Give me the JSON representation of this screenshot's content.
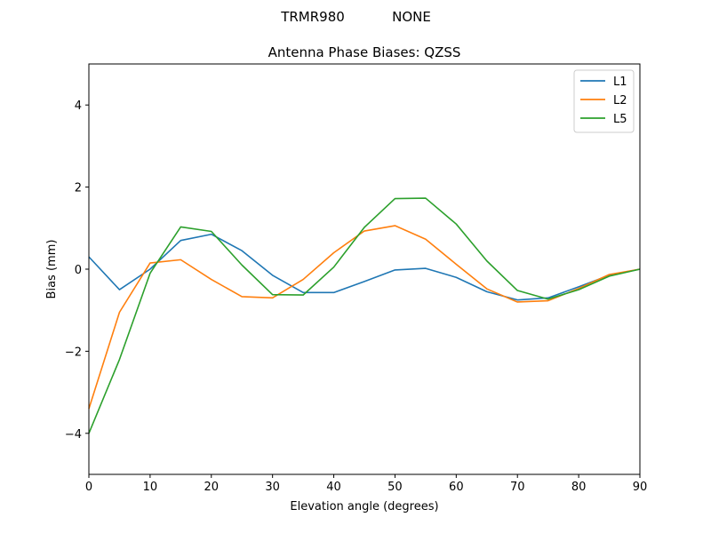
{
  "chart_data": {
    "type": "line",
    "suptitle_left": "TRMR980",
    "suptitle_right": "NONE",
    "title": "Antenna Phase Biases: QZSS",
    "xlabel": "Elevation angle (degrees)",
    "ylabel": "Bias (mm)",
    "xlim": [
      0,
      90
    ],
    "ylim": [
      -5,
      5
    ],
    "xticks": [
      0,
      10,
      20,
      30,
      40,
      50,
      60,
      70,
      80,
      90
    ],
    "yticks": [
      -4,
      -2,
      0,
      2,
      4
    ],
    "ytick_labels": [
      "−4",
      "−2",
      "0",
      "2",
      "4"
    ],
    "grid": false,
    "legend_position": "top-right",
    "x": [
      0,
      5,
      10,
      15,
      20,
      25,
      30,
      35,
      40,
      45,
      50,
      55,
      60,
      65,
      70,
      75,
      80,
      85,
      90
    ],
    "series": [
      {
        "name": "L1",
        "color": "#1f77b4",
        "values": [
          0.3,
          -0.5,
          0.0,
          0.7,
          0.85,
          0.45,
          -0.15,
          -0.57,
          -0.57,
          -0.3,
          -0.02,
          0.02,
          -0.2,
          -0.55,
          -0.75,
          -0.7,
          -0.43,
          -0.15,
          0.0
        ]
      },
      {
        "name": "L2",
        "color": "#ff7f0e",
        "values": [
          -3.4,
          -1.05,
          0.15,
          0.23,
          -0.25,
          -0.67,
          -0.7,
          -0.25,
          0.4,
          0.93,
          1.06,
          0.73,
          0.12,
          -0.48,
          -0.8,
          -0.77,
          -0.47,
          -0.13,
          0.0
        ]
      },
      {
        "name": "L5",
        "color": "#2ca02c",
        "values": [
          -4.0,
          -2.2,
          -0.1,
          1.03,
          0.92,
          0.1,
          -0.62,
          -0.63,
          0.05,
          1.02,
          1.72,
          1.73,
          1.1,
          0.2,
          -0.52,
          -0.73,
          -0.5,
          -0.17,
          0.0
        ]
      }
    ]
  }
}
